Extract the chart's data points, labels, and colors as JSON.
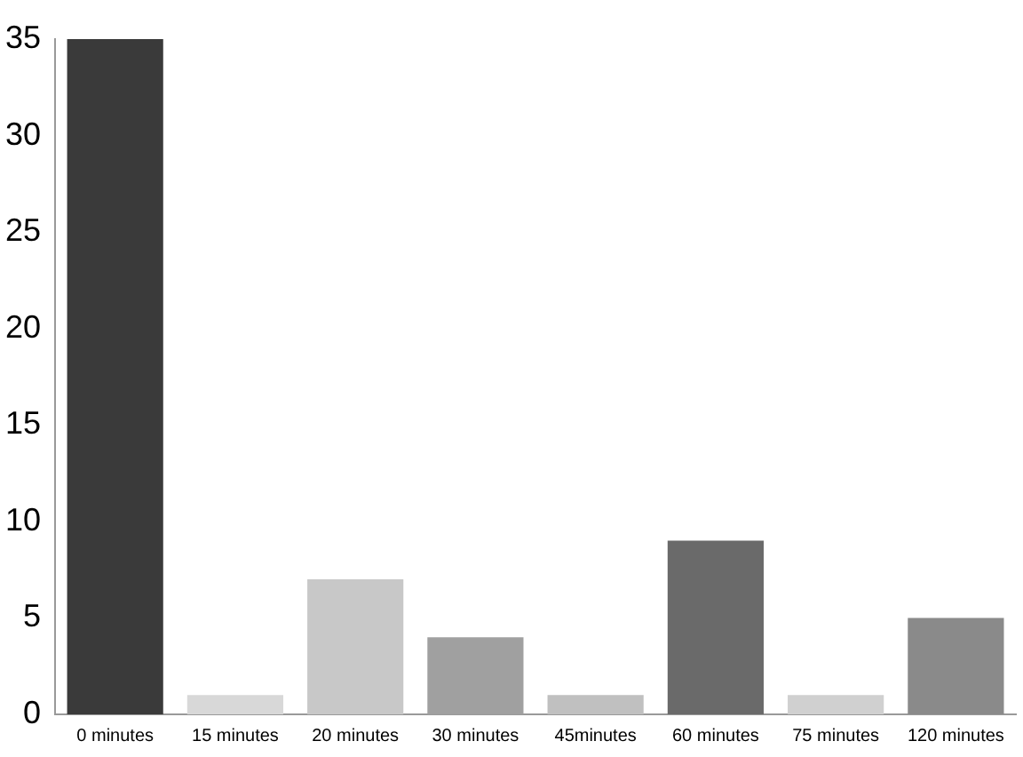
{
  "chart_data": {
    "type": "bar",
    "categories": [
      "0 minutes",
      "15 minutes",
      "20 minutes",
      "30 minutes",
      "45minutes",
      "60 minutes",
      "75 minutes",
      "120 minutes"
    ],
    "values": [
      35,
      1,
      7,
      4,
      1,
      9,
      1,
      5
    ],
    "colors": [
      "#3a3a3a",
      "#d8d8d8",
      "#c8c8c8",
      "#a0a0a0",
      "#c0c0c0",
      "#6a6a6a",
      "#d0d0d0",
      "#8a8a8a"
    ],
    "ylim": [
      0,
      35
    ],
    "yticks": [
      0,
      5,
      10,
      15,
      20,
      25,
      30,
      35
    ],
    "grid": false,
    "legend": false
  }
}
